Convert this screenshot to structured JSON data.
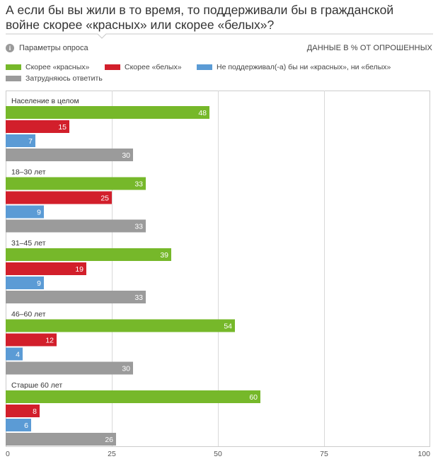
{
  "title": "А если бы вы жили в то время, то поддерживали бы в гражданской войне скорее «красных» или скорее «белых»?",
  "params_label": "Параметры опроса",
  "info_icon_glyph": "i",
  "data_note": "ДАННЫЕ В % ОТ ОПРОШЕННЫХ",
  "colors": {
    "red_side": "#76b82a",
    "white_side": "#d21f2b",
    "neither": "#5b9bd5",
    "undecided": "#9b9b9b",
    "grid": "#d9d9d9",
    "axis": "#cccccc"
  },
  "chart_data": {
    "type": "bar",
    "orientation": "horizontal",
    "categories": [
      "Население в целом",
      "18–30 лет",
      "31–45 лет",
      "46–60 лет",
      "Старше 60 лет"
    ],
    "series": [
      {
        "name": "Скорее «красных»",
        "color": "#76b82a",
        "values": [
          48,
          33,
          39,
          54,
          60
        ]
      },
      {
        "name": "Скорее «белых»",
        "color": "#d21f2b",
        "values": [
          15,
          25,
          19,
          12,
          8
        ]
      },
      {
        "name": "Не поддерживал(-а) бы ни «красных», ни «белых»",
        "color": "#5b9bd5",
        "values": [
          7,
          9,
          9,
          4,
          6
        ]
      },
      {
        "name": "Затрудняюсь ответить",
        "color": "#9b9b9b",
        "values": [
          30,
          33,
          33,
          30,
          26
        ]
      }
    ],
    "xlim": [
      0,
      100
    ],
    "xticks": [
      0,
      25,
      50,
      75,
      100
    ],
    "legend_position": "top",
    "grid": true,
    "data_labels": true
  }
}
